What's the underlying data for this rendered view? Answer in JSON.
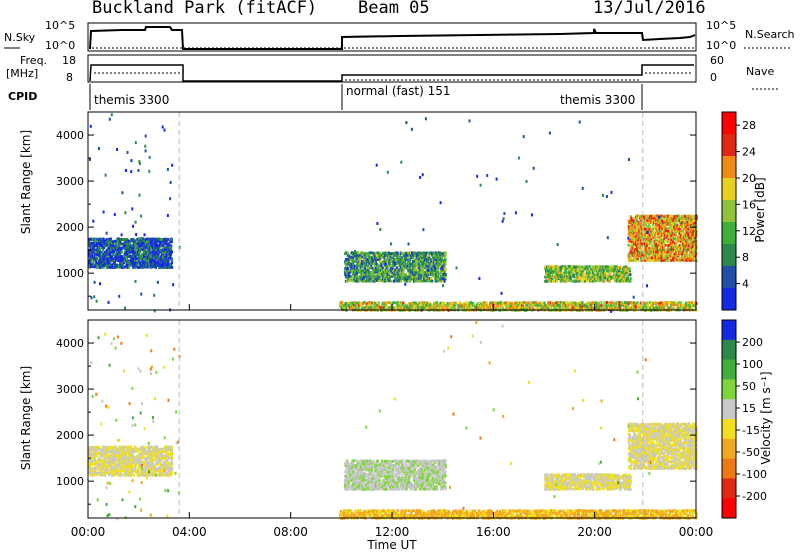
{
  "header": {
    "title": "Buckland Park (fitACF)",
    "beam": "Beam 05",
    "date": "13/Jul/2016"
  },
  "status_panels": {
    "sky_label": "N.Sky",
    "sky_scale_top": "10^5",
    "sky_scale_bottom": "10^0",
    "search_label": "N.Search",
    "search_scale_top": "10^5",
    "search_scale_bottom": "10^0",
    "freq_label": "Freq.",
    "freq_unit": "[MHz]",
    "freq_ticks": [
      "18",
      "8"
    ],
    "nave_label": "Nave",
    "nave_ticks": [
      "60",
      "0"
    ],
    "cpid_label": "CPID",
    "cpid_segments": [
      "themis 3300",
      "normal (fast) 151",
      "themis 3300"
    ]
  },
  "colors": {
    "power_scale": [
      "#1428e6",
      "#1f4fa8",
      "#2a8a4a",
      "#3fae3b",
      "#8ec33b",
      "#e6d21e",
      "#f08a14",
      "#e02814",
      "#ff0000"
    ],
    "velocity_scale": [
      "#1428e6",
      "#2a8a4a",
      "#3fae3b",
      "#7fd63a",
      "#c8c8c8",
      "#f0e01e",
      "#f0a81e",
      "#f07814",
      "#e02814",
      "#ff0000"
    ]
  },
  "chart_data": [
    {
      "type": "heatmap",
      "title": "Power",
      "xlabel": "Time UT",
      "ylabel": "Slant Range [km]",
      "xlim_hours": [
        0,
        24
      ],
      "ylim_km": [
        200,
        4500
      ],
      "x_tick_labels": [
        "00:00",
        "04:00",
        "08:00",
        "12:00",
        "16:00",
        "20:00",
        "00:00"
      ],
      "y_tick_labels": [
        "1000",
        "2000",
        "3000",
        "4000"
      ],
      "y_ticks": [
        1000,
        2000,
        3000,
        4000
      ],
      "colorbar": {
        "label": "Power [dB]",
        "ticks": [
          "4",
          "8",
          "12",
          "16",
          "20",
          "24",
          "28"
        ],
        "range": [
          0,
          30
        ]
      },
      "echo_regions": [
        {
          "t_start": 0.0,
          "t_end": 3.3,
          "r_low": 1150,
          "r_high": 1800,
          "value": 4
        },
        {
          "t_start": 10.1,
          "t_end": 14.1,
          "r_low": 850,
          "r_high": 1500,
          "value": 10
        },
        {
          "t_start": 18.0,
          "t_end": 21.4,
          "r_low": 850,
          "r_high": 1200,
          "value": 14
        },
        {
          "t_start": 21.3,
          "t_end": 24.0,
          "r_low": 1300,
          "r_high": 2300,
          "value": 20
        },
        {
          "t_start": 9.9,
          "t_end": 24.0,
          "r_low": 220,
          "r_high": 420,
          "value": 17
        }
      ]
    },
    {
      "type": "heatmap",
      "title": "Velocity",
      "xlabel": "Time UT",
      "ylabel": "Slant Range [km]",
      "xlim_hours": [
        0,
        24
      ],
      "ylim_km": [
        200,
        4500
      ],
      "x_tick_labels": [
        "00:00",
        "04:00",
        "08:00",
        "12:00",
        "16:00",
        "20:00",
        "00:00"
      ],
      "y_tick_labels": [
        "1000",
        "2000",
        "3000",
        "4000"
      ],
      "y_ticks": [
        1000,
        2000,
        3000,
        4000
      ],
      "colorbar": {
        "label": "Velocity [m s⁻¹]",
        "ticks": [
          "200",
          "100",
          "50",
          "15",
          "-15",
          "-50",
          "-100",
          "-200"
        ],
        "range": [
          -250,
          250
        ]
      },
      "echo_regions": [
        {
          "t_start": 0.0,
          "t_end": 3.3,
          "r_low": 1150,
          "r_high": 1800,
          "value": 0
        },
        {
          "t_start": 10.1,
          "t_end": 14.1,
          "r_low": 850,
          "r_high": 1500,
          "value": 40
        },
        {
          "t_start": 18.0,
          "t_end": 21.4,
          "r_low": 850,
          "r_high": 1200,
          "value": 0
        },
        {
          "t_start": 21.3,
          "t_end": 24.0,
          "r_low": 1300,
          "r_high": 2300,
          "value": 0
        },
        {
          "t_start": 9.9,
          "t_end": 24.0,
          "r_low": 220,
          "r_high": 420,
          "value": -60
        }
      ]
    }
  ]
}
